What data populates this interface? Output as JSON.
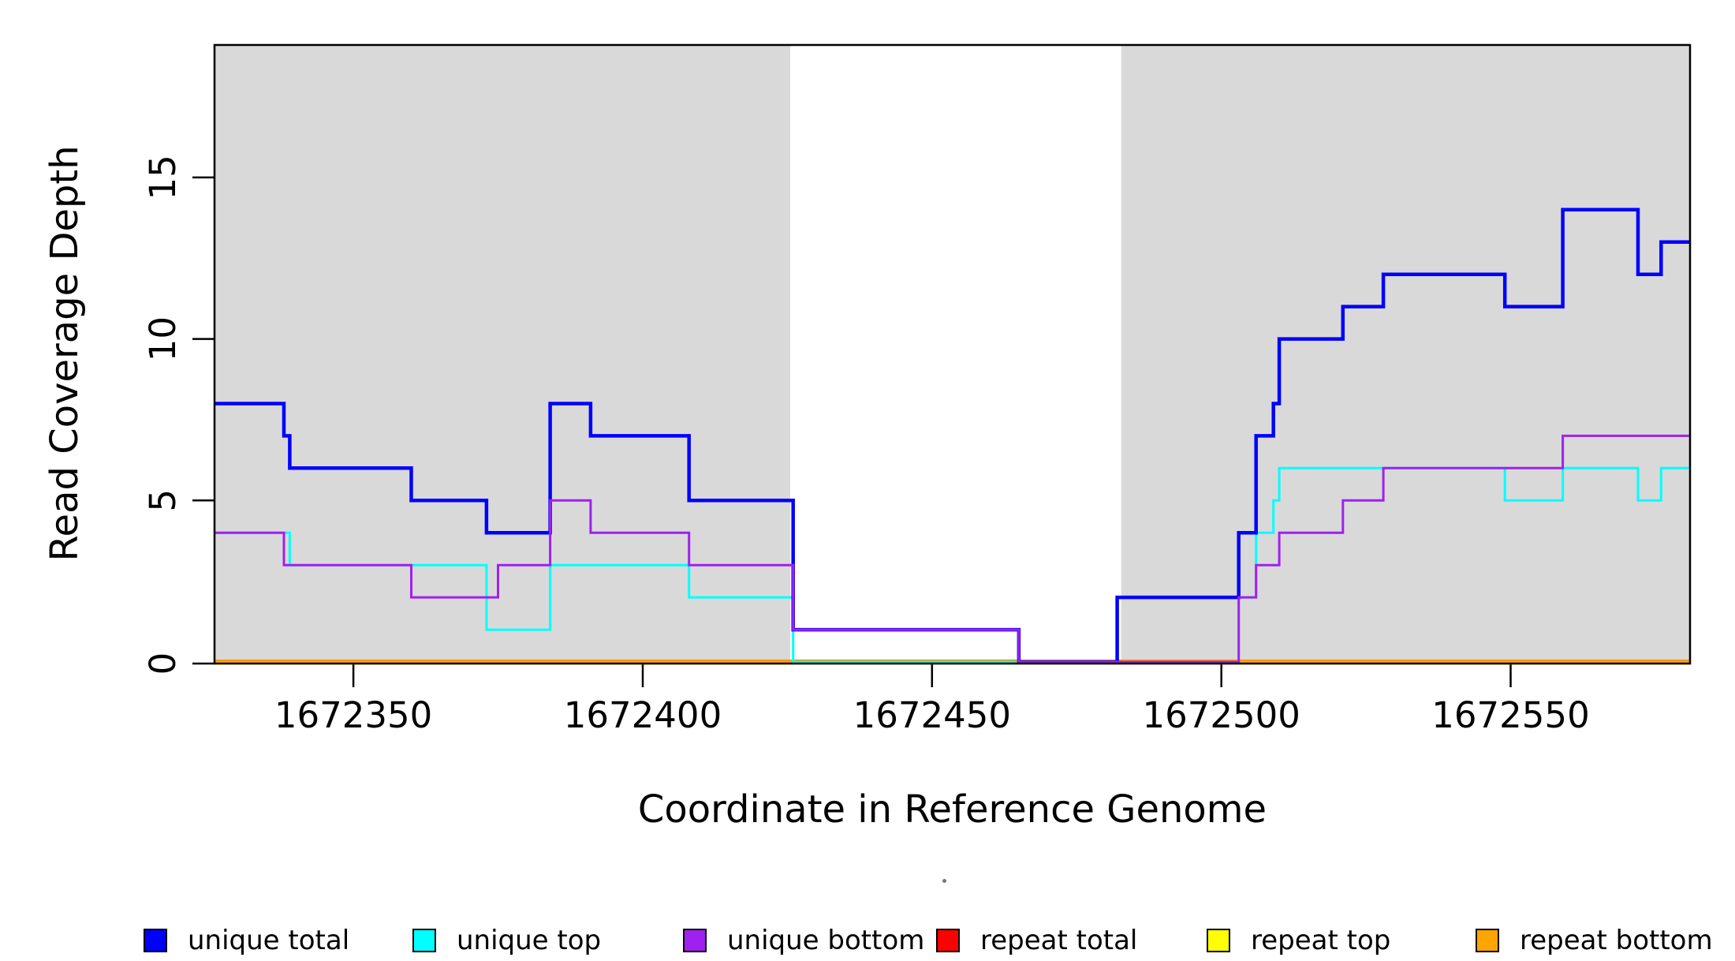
{
  "chart_data": {
    "type": "line",
    "line_style": "step",
    "title": "",
    "xlabel": "Coordinate in Reference Genome",
    "ylabel": "Read Coverage Depth",
    "xlim": [
      1672326,
      1672581
    ],
    "ylim": [
      0,
      19.1
    ],
    "x_ticks": [
      1672350,
      1672400,
      1672450,
      1672500,
      1672550
    ],
    "y_ticks": [
      0,
      5,
      10,
      15
    ],
    "grid": false,
    "background_color": "#FFFFFF",
    "plot_box_color": "#000000",
    "shaded_regions": [
      {
        "x0": 1672326,
        "x1": 1672425.5,
        "color": "#D9D9D9"
      },
      {
        "x0": 1672482.7,
        "x1": 1672581,
        "color": "#D9D9D9"
      }
    ],
    "draw_order": [
      "repeat top",
      "repeat total",
      "repeat bottom",
      "unique top",
      "unique total",
      "unique bottom"
    ],
    "series": [
      {
        "name": "unique total",
        "color": "#0000FF",
        "line_width": 4.5,
        "steps": [
          [
            1672326,
            8
          ],
          [
            1672338,
            7
          ],
          [
            1672339,
            6
          ],
          [
            1672360,
            5
          ],
          [
            1672373,
            4
          ],
          [
            1672384,
            8
          ],
          [
            1672391,
            7
          ],
          [
            1672408,
            5
          ],
          [
            1672426,
            1
          ],
          [
            1672465,
            0
          ],
          [
            1672482,
            2
          ],
          [
            1672503,
            4
          ],
          [
            1672506,
            7
          ],
          [
            1672509,
            8
          ],
          [
            1672510,
            10
          ],
          [
            1672521,
            11
          ],
          [
            1672528,
            12
          ],
          [
            1672549,
            11
          ],
          [
            1672559,
            14
          ],
          [
            1672572,
            12
          ],
          [
            1672576,
            13
          ]
        ],
        "end_x": 1672581
      },
      {
        "name": "unique top",
        "color": "#00FFFF",
        "line_width": 3,
        "steps": [
          [
            1672326,
            4
          ],
          [
            1672339,
            3
          ],
          [
            1672373,
            1
          ],
          [
            1672384,
            3
          ],
          [
            1672408,
            2
          ],
          [
            1672426,
            0
          ],
          [
            1672482,
            2
          ],
          [
            1672506,
            4
          ],
          [
            1672509,
            5
          ],
          [
            1672510,
            6
          ],
          [
            1672549,
            5
          ],
          [
            1672559,
            6
          ],
          [
            1672572,
            5
          ],
          [
            1672576,
            6
          ]
        ],
        "end_x": 1672581
      },
      {
        "name": "unique bottom",
        "color": "#A020F0",
        "line_width": 3,
        "steps": [
          [
            1672326,
            4
          ],
          [
            1672338,
            3
          ],
          [
            1672360,
            2
          ],
          [
            1672375,
            3
          ],
          [
            1672384,
            5
          ],
          [
            1672391,
            4
          ],
          [
            1672408,
            3
          ],
          [
            1672426,
            1
          ],
          [
            1672465,
            0
          ],
          [
            1672503,
            2
          ],
          [
            1672506,
            3
          ],
          [
            1672510,
            4
          ],
          [
            1672521,
            5
          ],
          [
            1672528,
            6
          ],
          [
            1672559,
            7
          ]
        ],
        "end_x": 1672581
      },
      {
        "name": "repeat total",
        "color": "#FF0000",
        "line_width": 5,
        "steps": [
          [
            1672326,
            0
          ]
        ],
        "end_x": 1672581
      },
      {
        "name": "repeat top",
        "color": "#FFFF00",
        "line_width": 6.5,
        "steps": [
          [
            1672326,
            0
          ]
        ],
        "end_x": 1672581
      },
      {
        "name": "repeat bottom",
        "color": "#FFA500",
        "line_width": 4,
        "steps": [
          [
            1672326,
            0
          ]
        ],
        "end_x": 1672581
      }
    ],
    "legend": {
      "position": "bottom",
      "entries": [
        {
          "label": "unique total",
          "color": "#0000FF"
        },
        {
          "label": "unique top",
          "color": "#00FFFF"
        },
        {
          "label": "unique bottom",
          "color": "#A020F0"
        },
        {
          "label": "repeat total",
          "color": "#FF0000"
        },
        {
          "label": "repeat top",
          "color": "#FFFF00"
        },
        {
          "label": "repeat bottom",
          "color": "#FFA500"
        }
      ]
    }
  }
}
